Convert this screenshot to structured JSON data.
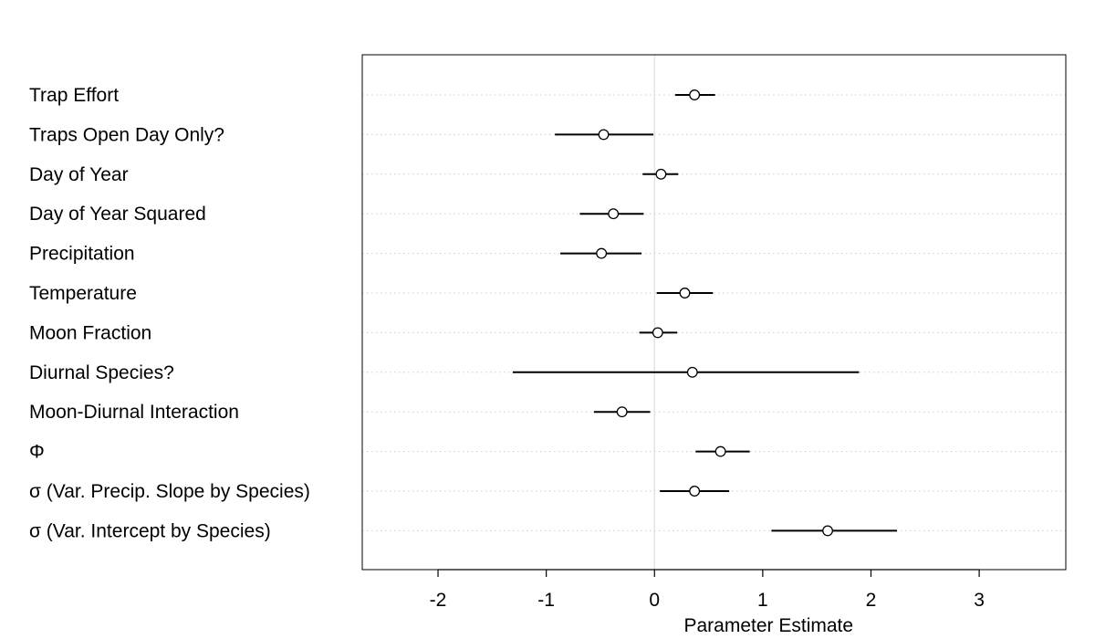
{
  "chart_data": {
    "type": "dot-interval",
    "title": "",
    "xlabel": "Parameter Estimate",
    "ylabel": "",
    "xlim": [
      -2.7,
      3.8
    ],
    "xticks": [
      -2,
      -1,
      0,
      1,
      2,
      3
    ],
    "xtick_labels": [
      "-2",
      "-1",
      "0",
      "1",
      "2",
      "3"
    ],
    "reference_line": 0,
    "grid": "horizontal-dotted",
    "colors": {
      "interval": "#000000",
      "point_outline": "#000000",
      "grid": "#cccccc",
      "reference": "#dddddd"
    },
    "parameters": [
      {
        "label": "Trap Effort",
        "estimate": 0.37,
        "lower": 0.19,
        "upper": 0.56
      },
      {
        "label": "Traps Open Day Only?",
        "estimate": -0.47,
        "lower": -0.92,
        "upper": -0.01
      },
      {
        "label": "Day of Year",
        "estimate": 0.06,
        "lower": -0.11,
        "upper": 0.22
      },
      {
        "label": "Day of Year Squared",
        "estimate": -0.38,
        "lower": -0.69,
        "upper": -0.1
      },
      {
        "label": "Precipitation",
        "estimate": -0.49,
        "lower": -0.87,
        "upper": -0.12
      },
      {
        "label": "Temperature",
        "estimate": 0.28,
        "lower": 0.02,
        "upper": 0.54
      },
      {
        "label": "Moon Fraction",
        "estimate": 0.03,
        "lower": -0.14,
        "upper": 0.21
      },
      {
        "label": "Diurnal Species?",
        "estimate": 0.35,
        "lower": -1.31,
        "upper": 1.89
      },
      {
        "label": "Moon-Diurnal Interaction",
        "estimate": -0.3,
        "lower": -0.56,
        "upper": -0.04
      },
      {
        "label": "Φ",
        "estimate": 0.61,
        "lower": 0.38,
        "upper": 0.88
      },
      {
        "label": "σ (Var. Precip. Slope by Species)",
        "estimate": 0.37,
        "lower": 0.05,
        "upper": 0.69
      },
      {
        "label": "σ (Var. Intercept by Species)",
        "estimate": 1.6,
        "lower": 1.08,
        "upper": 2.24
      }
    ]
  }
}
